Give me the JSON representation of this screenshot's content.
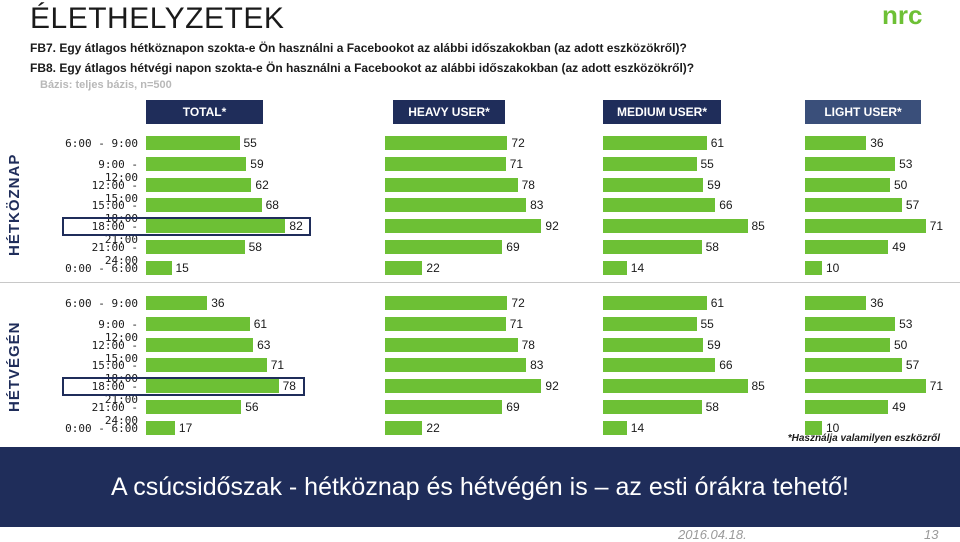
{
  "title": "ÉLETHELYZETEK",
  "logo_text": "nrc",
  "question_1": "FB7. Egy átlagos hétköznapon szokta-e Ön használni a Facebookot az alábbi időszakokban (az adott eszközökről)?",
  "question_2": "FB8. Egy átlagos hétvégi napon szokta-e Ön használni a Facebookot az alábbi időszakokban (az adott eszközökről)?",
  "base": "Bázis: teljes bázis, n=500",
  "footnote": "*Használja valamilyen eszközről",
  "banner": "A csúcsidőszak - hétköznap és hétvégén is – az esti órákra tehető!",
  "date": "2016.04.18.",
  "page_number": "13",
  "colors": {
    "bar": "#6dc035",
    "header": "#1f2d5a",
    "banner": "#1f2d5a",
    "highlight": "#1f2d5a"
  },
  "chart_data": {
    "type": "bar",
    "orientation": "horizontal",
    "categories": [
      "6:00 - 9:00",
      "9:00 - 12:00",
      "12:00 - 15:00",
      "15:00 - 18:00",
      "18:00 - 21:00",
      "21:00 - 24:00",
      "0:00 - 6:00"
    ],
    "columns": [
      "TOTAL*",
      "HEAVY USER*",
      "MEDIUM USER*",
      "LIGHT USER*"
    ],
    "xlim": [
      0,
      100
    ],
    "highlight_category": "18:00 - 21:00",
    "panels": [
      {
        "name": "HÉTKÖZNAP",
        "series": [
          {
            "name": "TOTAL*",
            "values": [
              55,
              59,
              62,
              68,
              82,
              58,
              15
            ]
          },
          {
            "name": "HEAVY USER*",
            "values": [
              72,
              71,
              78,
              83,
              92,
              69,
              22
            ]
          },
          {
            "name": "MEDIUM USER*",
            "values": [
              61,
              55,
              59,
              66,
              85,
              58,
              14
            ]
          },
          {
            "name": "LIGHT USER*",
            "values": [
              36,
              53,
              50,
              57,
              71,
              49,
              10
            ]
          }
        ]
      },
      {
        "name": "HÉTVÉGÉN",
        "series": [
          {
            "name": "TOTAL*",
            "values": [
              36,
              61,
              63,
              71,
              78,
              56,
              17
            ]
          },
          {
            "name": "HEAVY USER*",
            "values": [
              72,
              71,
              78,
              83,
              92,
              69,
              22
            ]
          },
          {
            "name": "MEDIUM USER*",
            "values": [
              61,
              55,
              59,
              66,
              85,
              58,
              14
            ]
          },
          {
            "name": "LIGHT USER*",
            "values": [
              36,
              53,
              50,
              57,
              71,
              49,
              10
            ]
          }
        ]
      }
    ]
  }
}
